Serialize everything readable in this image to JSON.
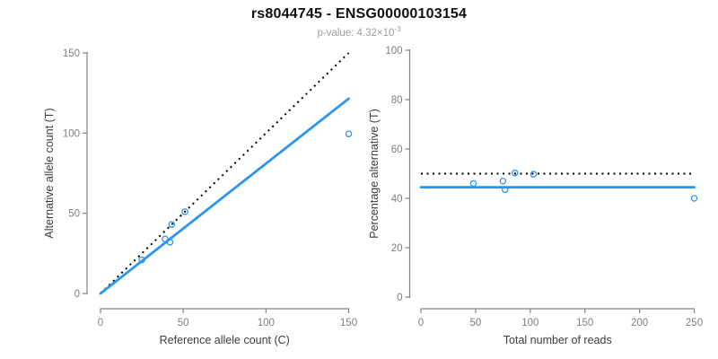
{
  "header": {
    "title": "rs8044745 - ENSG00000103154",
    "pvalue_label": "p-value: 4.32×10",
    "pvalue_exponent": "-3"
  },
  "colors": {
    "accent_blue": "#2B94F0",
    "dotted_black": "#000000",
    "axis_line": "#828282",
    "tick_label": "#7f7f7f",
    "axis_title": "#3d3d3d",
    "title_text": "#111111",
    "subtitle_text": "#9e9e9e"
  },
  "chart_data": [
    {
      "type": "scatter",
      "name": "allele-count-plot",
      "xlabel": "Reference allele count (C)",
      "ylabel": "Alternative allele count (T)",
      "xlim": [
        0,
        150
      ],
      "ylim": [
        0,
        150
      ],
      "xticks": [
        0,
        50,
        100,
        150
      ],
      "yticks": [
        0,
        50,
        100,
        150
      ],
      "grid": false,
      "points": [
        [
          25,
          21
        ],
        [
          39,
          34
        ],
        [
          42,
          32
        ],
        [
          43,
          43
        ],
        [
          51,
          51
        ],
        [
          150,
          99.5
        ]
      ],
      "lines": [
        {
          "name": "identity-line",
          "style": "dotted",
          "color": "#000000",
          "from": [
            0,
            0
          ],
          "to": [
            150,
            150
          ]
        },
        {
          "name": "fit-line",
          "style": "solid",
          "color": "#2B94F0",
          "from": [
            0,
            0
          ],
          "to": [
            150,
            121.5
          ]
        }
      ]
    },
    {
      "type": "scatter",
      "name": "percentage-plot",
      "xlabel": "Total number of reads",
      "ylabel": "Percentage alternative (T)",
      "xlim": [
        0,
        250
      ],
      "ylim": [
        0,
        100
      ],
      "xticks": [
        0,
        50,
        100,
        150,
        200,
        250
      ],
      "yticks": [
        0,
        20,
        40,
        60,
        80,
        100
      ],
      "grid": false,
      "points": [
        [
          48,
          46
        ],
        [
          75,
          47
        ],
        [
          77,
          43.5
        ],
        [
          86,
          50.3
        ],
        [
          103,
          49.8
        ],
        [
          250,
          40
        ]
      ],
      "lines": [
        {
          "name": "expected-50pct-line",
          "style": "dotted",
          "color": "#000000",
          "from": [
            0,
            50
          ],
          "to": [
            250,
            50
          ]
        },
        {
          "name": "mean-pct-line",
          "style": "solid",
          "color": "#2B94F0",
          "from": [
            0,
            44.5
          ],
          "to": [
            250,
            44.5
          ]
        }
      ]
    }
  ]
}
